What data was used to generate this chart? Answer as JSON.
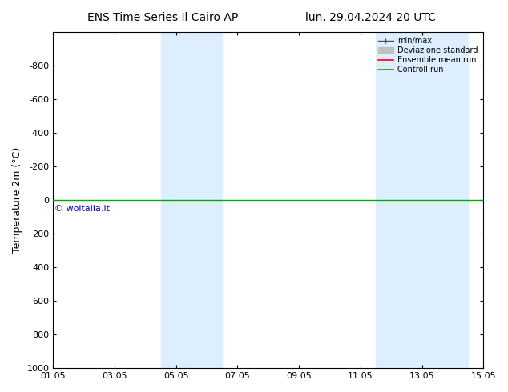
{
  "title": "ENS Time Series Il Cairo AP",
  "title_right": "lun. 29.04.2024 20 UTC",
  "ylabel": "Temperature 2m (°C)",
  "ylim": [
    -1000,
    1000
  ],
  "yticks": [
    -800,
    -600,
    -400,
    -200,
    0,
    200,
    400,
    600,
    800,
    1000
  ],
  "xtick_labels": [
    "01.05",
    "03.05",
    "05.05",
    "07.05",
    "09.05",
    "11.05",
    "13.05",
    "15.05"
  ],
  "xtick_positions": [
    0,
    2,
    4,
    6,
    8,
    10,
    12,
    14
  ],
  "shaded_bands": [
    {
      "x_start": 3.5,
      "x_end": 5.5
    },
    {
      "x_start": 10.5,
      "x_end": 13.5
    }
  ],
  "shaded_color": "#ddeeff",
  "horizontal_line_y": 0,
  "control_run_color": "#00aa00",
  "ensemble_mean_color": "#ff0000",
  "minmax_color": "#505050",
  "std_color": "#c0c0c0",
  "watermark_text": "© woitalia.it",
  "watermark_color": "#0000cc",
  "background_color": "#ffffff",
  "legend_labels": [
    "min/max",
    "Deviazione standard",
    "Ensemble mean run",
    "Controll run"
  ],
  "legend_colors": [
    "#505050",
    "#c0c0c0",
    "#ff0000",
    "#00aa00"
  ],
  "title_fontsize": 10,
  "tick_fontsize": 8,
  "axis_fontsize": 9
}
